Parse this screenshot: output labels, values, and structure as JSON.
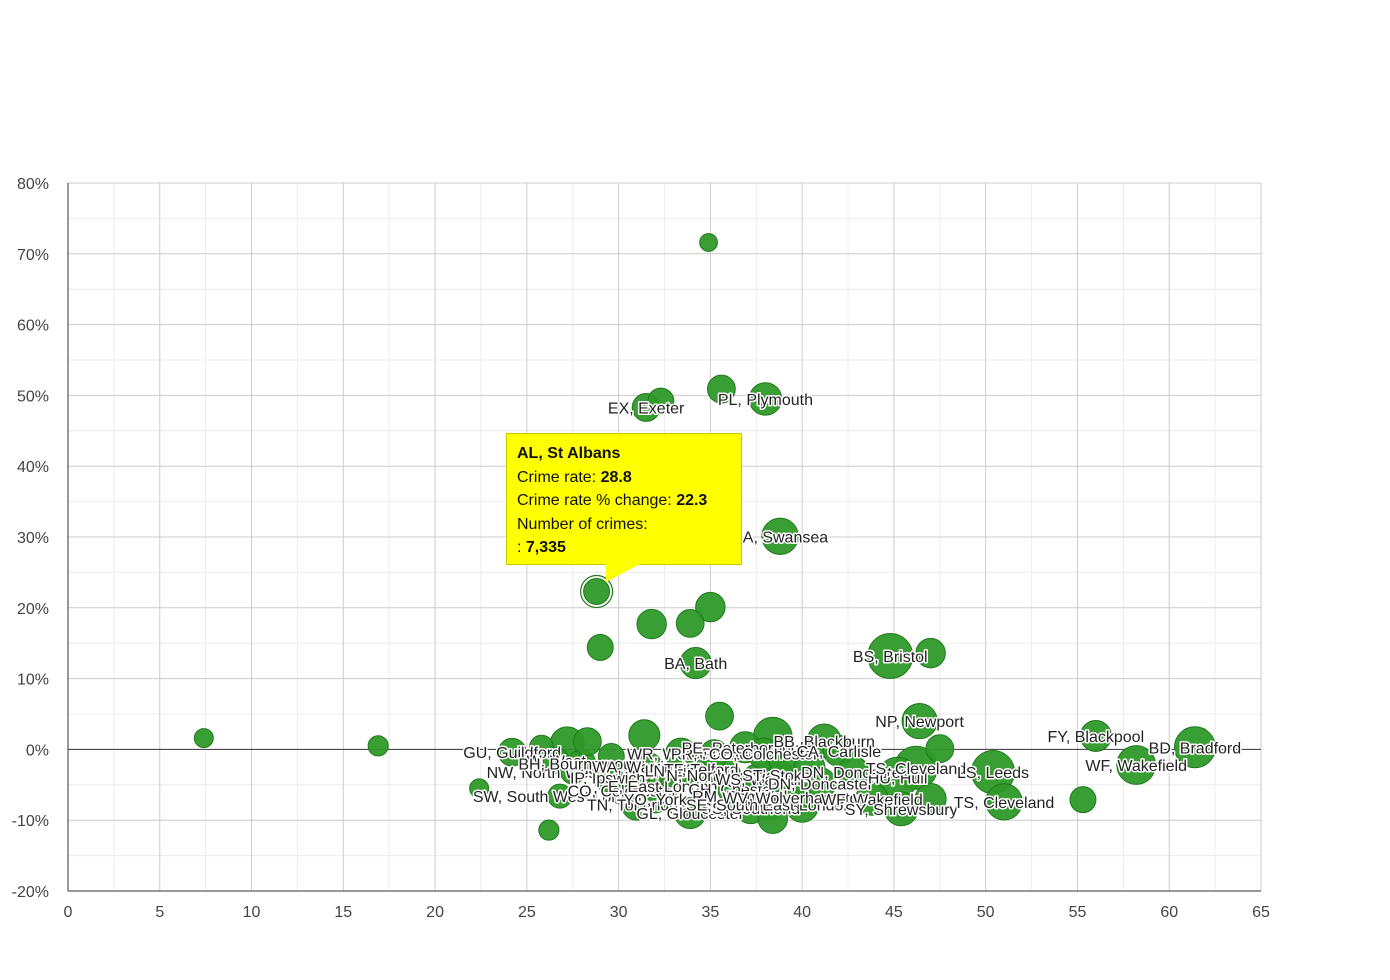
{
  "chart_data": {
    "type": "scatter",
    "title": "",
    "xlabel": "",
    "ylabel": "",
    "xlim": [
      0,
      65
    ],
    "ylim": [
      -20,
      80
    ],
    "x_ticks": [
      "0",
      "5",
      "10",
      "15",
      "20",
      "25",
      "30",
      "35",
      "40",
      "45",
      "50",
      "55",
      "60",
      "65"
    ],
    "y_ticks": [
      "-20%",
      "-10%",
      "0%",
      "10%",
      "20%",
      "30%",
      "40%",
      "50%",
      "60%",
      "70%",
      "80%"
    ],
    "grid": true,
    "legend": "none",
    "points": [
      {
        "x": 7.4,
        "y": 1.6,
        "size": 1,
        "label": ""
      },
      {
        "x": 16.9,
        "y": 0.5,
        "size": 1.2,
        "label": ""
      },
      {
        "x": 22.4,
        "y": -5.5,
        "size": 1,
        "label": ""
      },
      {
        "x": 24.2,
        "y": -0.4,
        "size": 3,
        "label": "GU, Guildford"
      },
      {
        "x": 25.8,
        "y": 0.3,
        "size": 2,
        "label": ""
      },
      {
        "x": 26.2,
        "y": -11.4,
        "size": 1.2,
        "label": ""
      },
      {
        "x": 26.6,
        "y": -1.6,
        "size": 2.5,
        "label": "W, West"
      },
      {
        "x": 26.8,
        "y": -6.6,
        "size": 2,
        "label": "SW, South West London"
      },
      {
        "x": 27.2,
        "y": 0.8,
        "size": 5,
        "label": ""
      },
      {
        "x": 27.5,
        "y": -3.2,
        "size": 2,
        "label": "NW, North West London"
      },
      {
        "x": 28.0,
        "y": -2.0,
        "size": 3,
        "label": "BH, Bournemouth"
      },
      {
        "x": 28.3,
        "y": 1.1,
        "size": 3,
        "label": ""
      },
      {
        "x": 28.8,
        "y": 22.3,
        "size": 2.5,
        "label": ""
      },
      {
        "x": 29.0,
        "y": 14.4,
        "size": 2.5,
        "label": ""
      },
      {
        "x": 29.4,
        "y": -4.0,
        "size": 3,
        "label": "IP, Ipswich"
      },
      {
        "x": 29.6,
        "y": -1.0,
        "size": 2.5,
        "label": ""
      },
      {
        "x": 30.2,
        "y": -5.8,
        "size": 3,
        "label": "CO, Colchester"
      },
      {
        "x": 30.6,
        "y": -4.2,
        "size": 3.5,
        "label": ""
      },
      {
        "x": 31.0,
        "y": -7.8,
        "size": 4,
        "label": "TN, Tonbridge"
      },
      {
        "x": 31.4,
        "y": 2.0,
        "size": 4,
        "label": ""
      },
      {
        "x": 31.5,
        "y": 48.3,
        "size": 3,
        "label": "EX, Exeter"
      },
      {
        "x": 31.6,
        "y": -2.4,
        "size": 3,
        "label": "WA, Warrington"
      },
      {
        "x": 31.8,
        "y": 17.7,
        "size": 3.5,
        "label": ""
      },
      {
        "x": 32.0,
        "y": -7.0,
        "size": 3,
        "label": "YO, York"
      },
      {
        "x": 32.3,
        "y": 49.2,
        "size": 2.5,
        "label": ""
      },
      {
        "x": 32.4,
        "y": -5.2,
        "size": 4,
        "label": "E, East London"
      },
      {
        "x": 33.0,
        "y": -3.8,
        "size": 3,
        "label": ""
      },
      {
        "x": 33.4,
        "y": -0.6,
        "size": 4,
        "label": "WR, Worcester"
      },
      {
        "x": 33.6,
        "y": -3.0,
        "size": 3.5,
        "label": "LN, Lincoln"
      },
      {
        "x": 33.9,
        "y": 17.8,
        "size": 3,
        "label": ""
      },
      {
        "x": 33.9,
        "y": -9.0,
        "size": 4,
        "label": "GL, Gloucester"
      },
      {
        "x": 34.2,
        "y": 12.2,
        "size": 4,
        "label": "BA, Bath"
      },
      {
        "x": 34.5,
        "y": -2.8,
        "size": 3,
        "label": "TF, Telford"
      },
      {
        "x": 34.9,
        "y": 71.6,
        "size": 0.8,
        "label": ""
      },
      {
        "x": 35.0,
        "y": 20.1,
        "size": 3.5,
        "label": ""
      },
      {
        "x": 35.2,
        "y": -0.6,
        "size": 3,
        "label": "PR, Preston"
      },
      {
        "x": 35.5,
        "y": 4.7,
        "size": 3,
        "label": ""
      },
      {
        "x": 35.6,
        "y": 50.9,
        "size": 3,
        "label": ""
      },
      {
        "x": 35.8,
        "y": -3.6,
        "size": 4,
        "label": "N, North London"
      },
      {
        "x": 36.2,
        "y": -5.6,
        "size": 3.5,
        "label": "CH, Chester"
      },
      {
        "x": 36.6,
        "y": -6.6,
        "size": 4,
        "label": "RM, Romford"
      },
      {
        "x": 36.9,
        "y": 0.3,
        "size": 4,
        "label": "PE, Peterborough"
      },
      {
        "x": 37.2,
        "y": -8.3,
        "size": 4,
        "label": "SS, Southend"
      },
      {
        "x": 37.6,
        "y": -4.2,
        "size": 4,
        "label": "WS, Walsall"
      },
      {
        "x": 37.9,
        "y": -0.6,
        "size": 4,
        "label": "CO, Colchester"
      },
      {
        "x": 38.0,
        "y": 49.5,
        "size": 4.5,
        "label": "PL, Plymouth"
      },
      {
        "x": 38.2,
        "y": -7.8,
        "size": 4,
        "label": "SE, South East London"
      },
      {
        "x": 38.4,
        "y": 1.8,
        "size": 7,
        "label": ""
      },
      {
        "x": 38.4,
        "y": -9.8,
        "size": 3.5,
        "label": ""
      },
      {
        "x": 38.6,
        "y": -3.6,
        "size": 5,
        "label": "ST, Stoke"
      },
      {
        "x": 38.8,
        "y": 30.1,
        "size": 6,
        "label": "SA, Swansea"
      },
      {
        "x": 39.0,
        "y": -1.2,
        "size": 4,
        "label": ""
      },
      {
        "x": 39.6,
        "y": -6.8,
        "size": 4,
        "label": "WV, Wolverhampton"
      },
      {
        "x": 40.0,
        "y": -8.0,
        "size": 4.5,
        "label": ""
      },
      {
        "x": 40.4,
        "y": -2.6,
        "size": 4,
        "label": ""
      },
      {
        "x": 41.0,
        "y": -4.8,
        "size": 4,
        "label": "DN, Doncaster"
      },
      {
        "x": 41.2,
        "y": 1.2,
        "size": 5,
        "label": "BB, Blackburn"
      },
      {
        "x": 42.0,
        "y": -0.2,
        "size": 4,
        "label": "CA, Carlisle"
      },
      {
        "x": 42.8,
        "y": -3.2,
        "size": 4,
        "label": "DN, Doncaster"
      },
      {
        "x": 43.8,
        "y": -7.0,
        "size": 4.5,
        "label": "WF, Wakefield"
      },
      {
        "x": 44.8,
        "y": 13.2,
        "size": 10,
        "label": "BS, Bristol"
      },
      {
        "x": 45.2,
        "y": -4.0,
        "size": 8,
        "label": "HU, Hull"
      },
      {
        "x": 45.4,
        "y": -8.4,
        "size": 5,
        "label": "SY, Shrewsbury"
      },
      {
        "x": 46.2,
        "y": -2.6,
        "size": 9,
        "label": "TS, Cleveland"
      },
      {
        "x": 46.4,
        "y": 4.0,
        "size": 5.5,
        "label": "NP, Newport"
      },
      {
        "x": 47.0,
        "y": 13.6,
        "size": 3.5,
        "label": ""
      },
      {
        "x": 47.0,
        "y": -7.0,
        "size": 4,
        "label": ""
      },
      {
        "x": 47.5,
        "y": 0.1,
        "size": 3,
        "label": ""
      },
      {
        "x": 50.4,
        "y": -3.2,
        "size": 9,
        "label": "LS, Leeds"
      },
      {
        "x": 51.0,
        "y": -7.4,
        "size": 6,
        "label": "TS, Cleveland"
      },
      {
        "x": 55.3,
        "y": -7.1,
        "size": 2.5,
        "label": ""
      },
      {
        "x": 56.0,
        "y": 1.9,
        "size": 4,
        "label": "FY, Blackpool"
      },
      {
        "x": 58.2,
        "y": -2.2,
        "size": 7,
        "label": "WF, Wakefield"
      },
      {
        "x": 61.4,
        "y": 0.3,
        "size": 8,
        "label": "BD, Bradford"
      }
    ],
    "highlight_index": 12,
    "marker_color": "#2e9928",
    "marker_stroke": "#1f7a1c",
    "tooltip": {
      "title": "AL, St Albans",
      "rate_label": "Crime rate: ",
      "rate_value": "28.8",
      "change_label": "Crime rate % change: ",
      "change_value": "22.3",
      "count_label": "Number of crimes:",
      "count_prefix": ": ",
      "count_value": "7,335",
      "background": "#ffff00"
    }
  }
}
